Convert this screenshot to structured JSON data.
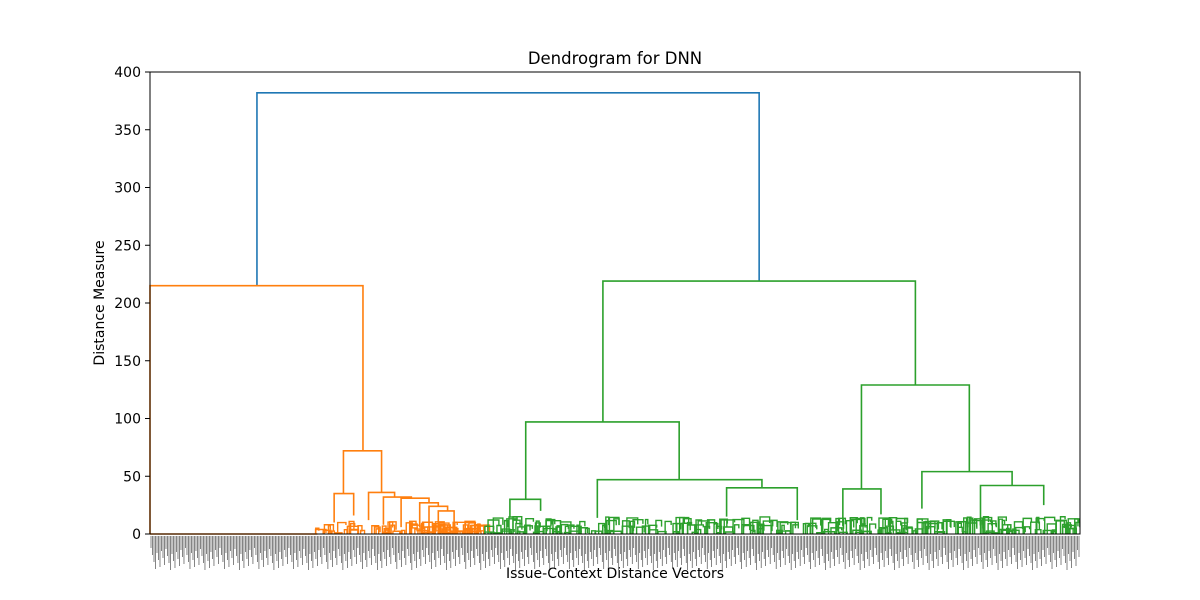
{
  "chart_data": {
    "type": "dendrogram",
    "title": "Dendrogram for DNN",
    "xlabel": "Issue-Context Distance Vectors",
    "ylabel": "Distance Measure",
    "ylim": [
      0,
      400
    ],
    "yticks": [
      0,
      50,
      100,
      150,
      200,
      250,
      300,
      350,
      400
    ],
    "grid": false,
    "colors": {
      "root": "#1f77b4",
      "cluster_a": "#ff7f0e",
      "cluster_b": "#2ca02c",
      "axis": "#000000"
    },
    "merges": [
      {
        "color": "root",
        "left": 0.115,
        "right": 0.655,
        "height": 382,
        "left_child": 215,
        "right_child": 219
      },
      {
        "color": "cluster_a",
        "left": 0.0,
        "right": 0.229,
        "height": 215,
        "left_child": 0,
        "right_child": 72
      },
      {
        "color": "cluster_a",
        "left": 0.208,
        "right": 0.249,
        "height": 72,
        "left_child": 35,
        "right_child": 36
      },
      {
        "color": "cluster_a",
        "left": 0.198,
        "right": 0.219,
        "height": 35,
        "left_child": 10,
        "right_child": 16
      },
      {
        "color": "cluster_a",
        "left": 0.235,
        "right": 0.263,
        "height": 36,
        "left_child": 12,
        "right_child": 32
      },
      {
        "color": "cluster_a",
        "left": 0.251,
        "right": 0.281,
        "height": 32,
        "left_child": 8,
        "right_child": 31
      },
      {
        "color": "cluster_a",
        "left": 0.27,
        "right": 0.3,
        "height": 31,
        "left_child": 6,
        "right_child": 27
      },
      {
        "color": "cluster_a",
        "left": 0.29,
        "right": 0.31,
        "height": 27,
        "left_child": 6,
        "right_child": 24
      },
      {
        "color": "cluster_a",
        "left": 0.3,
        "right": 0.32,
        "height": 24,
        "left_child": 6,
        "right_child": 20
      },
      {
        "color": "cluster_a",
        "left": 0.31,
        "right": 0.327,
        "height": 20,
        "left_child": 4,
        "right_child": 6
      },
      {
        "color": "cluster_b",
        "left": 0.487,
        "right": 0.823,
        "height": 219,
        "left_child": 97,
        "right_child": 129
      },
      {
        "color": "cluster_b",
        "left": 0.404,
        "right": 0.569,
        "height": 97,
        "left_child": 30,
        "right_child": 47
      },
      {
        "color": "cluster_b",
        "left": 0.387,
        "right": 0.42,
        "height": 30,
        "left_child": 15,
        "right_child": 20
      },
      {
        "color": "cluster_b",
        "left": 0.481,
        "right": 0.658,
        "height": 47,
        "left_child": 14,
        "right_child": 40
      },
      {
        "color": "cluster_b",
        "left": 0.62,
        "right": 0.696,
        "height": 40,
        "left_child": 15,
        "right_child": 12
      },
      {
        "color": "cluster_b",
        "left": 0.765,
        "right": 0.881,
        "height": 129,
        "left_child": 39,
        "right_child": 54
      },
      {
        "color": "cluster_b",
        "left": 0.745,
        "right": 0.786,
        "height": 39,
        "left_child": 7,
        "right_child": 17
      },
      {
        "color": "cluster_b",
        "left": 0.83,
        "right": 0.927,
        "height": 54,
        "left_child": 22,
        "right_child": 42
      },
      {
        "color": "cluster_b",
        "left": 0.893,
        "right": 0.961,
        "height": 42,
        "left_child": 8,
        "right_child": 25
      }
    ]
  }
}
